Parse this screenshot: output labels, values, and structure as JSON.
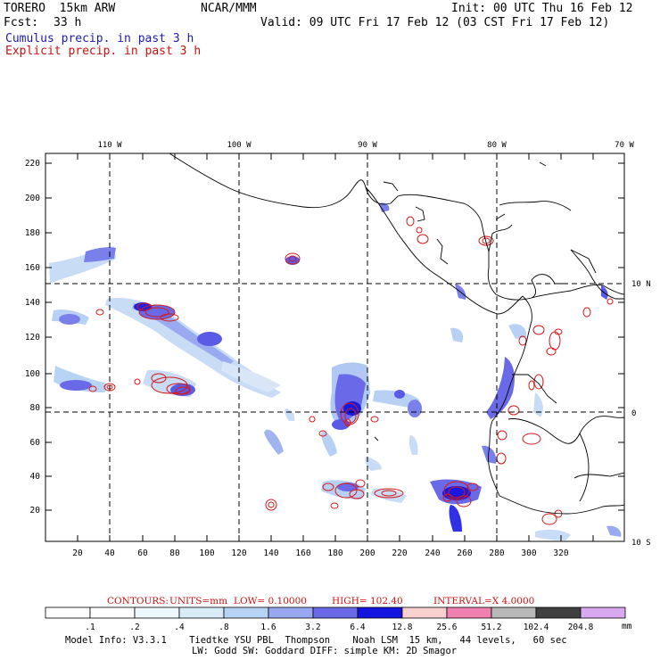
{
  "header": {
    "model": "TORERO  15km ARW",
    "center": "NCAR/MMM",
    "init": "Init: 00 UTC Thu 16 Feb 12",
    "fcst_label": "Fcst:",
    "fcst_value": "33 h",
    "valid": "Valid: 09 UTC Fri 17 Feb 12 (03 CST Fri 17 Feb 12)",
    "field1": "Cumulus precip. in past 3 h",
    "field2": "Explicit precip. in past 3 h",
    "field1_color": "#1b1bb0",
    "field2_color": "#d01010"
  },
  "map": {
    "x_ticks": [
      "20",
      "40",
      "60",
      "80",
      "100",
      "120",
      "140",
      "160",
      "180",
      "200",
      "220",
      "240",
      "260",
      "280",
      "300",
      "320"
    ],
    "y_ticks": [
      "20",
      "40",
      "60",
      "80",
      "100",
      "120",
      "140",
      "160",
      "180",
      "200",
      "220"
    ],
    "lon_labels": [
      "110 W",
      "100 W",
      "90 W",
      "80 W",
      "70 W"
    ],
    "lat_labels": [
      "10 N",
      "0",
      "10 S"
    ]
  },
  "contour_info": {
    "prefix": "CONTOURS:",
    "units": "UNITS=mm",
    "low": "LOW= 0.10000",
    "high": "HIGH= 102.40",
    "interval": "INTERVAL=X  4.0000"
  },
  "colorbar": {
    "labels": [
      ".1",
      ".2",
      ".4",
      ".8",
      "1.6",
      "3.2",
      "6.4",
      "12.8",
      "25.6",
      "51.2",
      "102.4",
      "204.8"
    ],
    "unit": "mm",
    "colors": [
      "#ffffff",
      "#ffffff",
      "#eef8ff",
      "#d8ecf8",
      "#b8d4f4",
      "#98a8f0",
      "#6a6ae8",
      "#1414e0",
      "#f8d0d0",
      "#f080b0",
      "#b8b8b8",
      "#404040",
      "#d8a8f0"
    ]
  },
  "footer": {
    "line1": "Model Info: V3.3.1    Tiedtke YSU PBL  Thompson    Noah LSM  15 km,   44 levels,   60 sec",
    "line2": "LW: Godd SW: Goddard DIFF: simple KM: 2D Smagor"
  }
}
